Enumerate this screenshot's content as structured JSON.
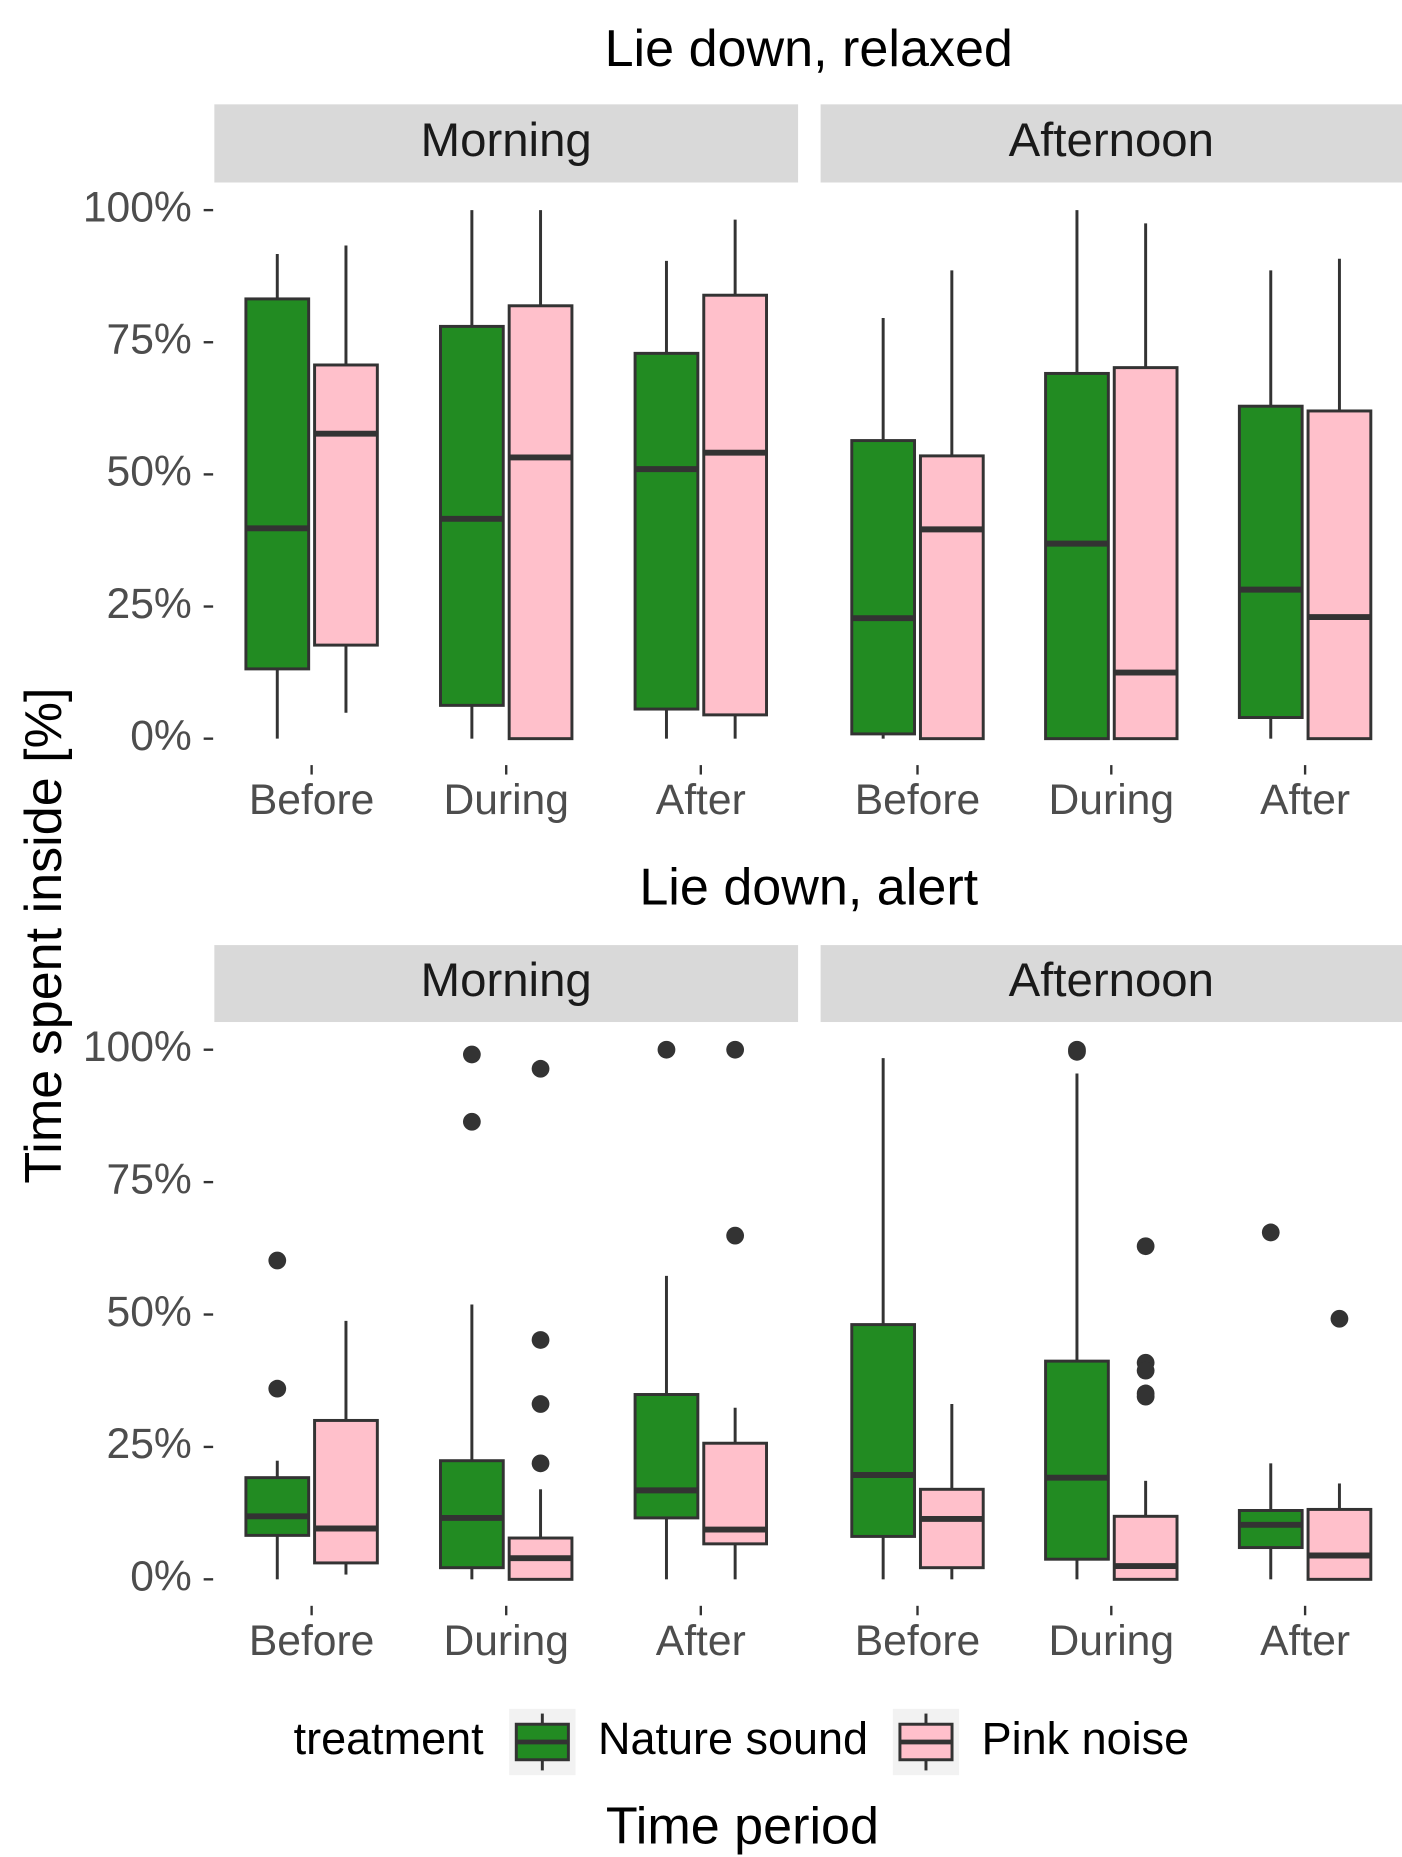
{
  "y_label": "Time spent inside [%]",
  "x_label": "Time period",
  "legend_title": "treatment",
  "chart_data": [
    {
      "type": "box",
      "title": "Lie down, relaxed",
      "facets": [
        "Morning",
        "Afternoon"
      ],
      "categories": [
        "Before",
        "During",
        "After"
      ],
      "ylim": [
        -5,
        105
      ],
      "yticks": [
        {
          "value": 0,
          "label": "0%"
        },
        {
          "value": 25,
          "label": "25%"
        },
        {
          "value": 50,
          "label": "50%"
        },
        {
          "value": 75,
          "label": "75%"
        },
        {
          "value": 100,
          "label": "100%"
        }
      ],
      "series": [
        {
          "name": "Nature sound",
          "color": "#228b22",
          "facets": [
            [
              {
                "min": 0,
                "q1": 13.2,
                "median": 39.8,
                "q3": 83.2,
                "max": 91.7,
                "outliers": []
              },
              {
                "min": 0,
                "q1": 6.3,
                "median": 41.6,
                "q3": 78,
                "max": 100,
                "outliers": []
              },
              {
                "min": 0,
                "q1": 5.6,
                "median": 51,
                "q3": 72.9,
                "max": 90.4,
                "outliers": []
              }
            ],
            [
              {
                "min": 0,
                "q1": 0.9,
                "median": 22.8,
                "q3": 56.4,
                "max": 79.6,
                "outliers": []
              },
              {
                "min": 0,
                "q1": 0,
                "median": 36.9,
                "q3": 69.1,
                "max": 100,
                "outliers": []
              },
              {
                "min": 0,
                "q1": 4,
                "median": 28.2,
                "q3": 62.9,
                "max": 88.6,
                "outliers": []
              }
            ]
          ]
        },
        {
          "name": "Pink noise",
          "color": "#ffc0cb",
          "facets": [
            [
              {
                "min": 4.9,
                "q1": 17.7,
                "median": 57.7,
                "q3": 70.7,
                "max": 93.3,
                "outliers": []
              },
              {
                "min": 0,
                "q1": 0,
                "median": 53.2,
                "q3": 81.9,
                "max": 100,
                "outliers": []
              },
              {
                "min": 0,
                "q1": 4.5,
                "median": 54.1,
                "q3": 83.9,
                "max": 98.2,
                "outliers": []
              }
            ],
            [
              {
                "min": 0,
                "q1": 0,
                "median": 39.6,
                "q3": 53.5,
                "max": 88.6,
                "outliers": []
              },
              {
                "min": 0,
                "q1": 0,
                "median": 12.5,
                "q3": 70.2,
                "max": 97.5,
                "outliers": []
              },
              {
                "min": 0,
                "q1": 0,
                "median": 23,
                "q3": 62,
                "max": 90.8,
                "outliers": []
              }
            ]
          ]
        }
      ]
    },
    {
      "type": "box",
      "title": "Lie down, alert",
      "facets": [
        "Morning",
        "Afternoon"
      ],
      "categories": [
        "Before",
        "During",
        "After"
      ],
      "ylim": [
        -5,
        105
      ],
      "yticks": [
        {
          "value": 0,
          "label": "0%"
        },
        {
          "value": 25,
          "label": "25%"
        },
        {
          "value": 50,
          "label": "50%"
        },
        {
          "value": 75,
          "label": "75%"
        },
        {
          "value": 100,
          "label": "100%"
        }
      ],
      "series": [
        {
          "name": "Nature sound",
          "color": "#228b22",
          "facets": [
            [
              {
                "min": 0,
                "q1": 8.3,
                "median": 11.9,
                "q3": 19.2,
                "max": 22.4,
                "outliers": [
                  60.2,
                  36
                ]
              },
              {
                "min": 0,
                "q1": 2.2,
                "median": 11.6,
                "q3": 22.4,
                "max": 51.9,
                "outliers": [
                  99.1,
                  86.4
                ]
              },
              {
                "min": 0,
                "q1": 11.6,
                "median": 16.8,
                "q3": 34.9,
                "max": 57.3,
                "outliers": [
                  100
                ]
              }
            ],
            [
              {
                "min": 0,
                "q1": 8.1,
                "median": 19.7,
                "q3": 48.1,
                "max": 98.4,
                "outliers": []
              },
              {
                "min": 0,
                "q1": 3.8,
                "median": 19.2,
                "q3": 41.2,
                "max": 95.5,
                "outliers": [
                  100,
                  99.6
                ]
              },
              {
                "min": 0,
                "q1": 6,
                "median": 10.3,
                "q3": 13,
                "max": 21.9,
                "outliers": [
                  65.5
                ]
              }
            ]
          ]
        },
        {
          "name": "Pink noise",
          "color": "#ffc0cb",
          "facets": [
            [
              {
                "min": 0.9,
                "q1": 3.1,
                "median": 9.6,
                "q3": 30,
                "max": 48.8,
                "outliers": []
              },
              {
                "min": 0,
                "q1": 0,
                "median": 4,
                "q3": 7.8,
                "max": 17,
                "outliers": [
                  96.4,
                  45.2,
                  33.1,
                  21.9
                ]
              },
              {
                "min": 0,
                "q1": 6.7,
                "median": 9.4,
                "q3": 25.7,
                "max": 32.4,
                "outliers": [
                  100,
                  64.9
                ]
              }
            ],
            [
              {
                "min": 0,
                "q1": 2.2,
                "median": 11.4,
                "q3": 17,
                "max": 33.1,
                "outliers": []
              },
              {
                "min": 0,
                "q1": 0,
                "median": 2.5,
                "q3": 11.9,
                "max": 18.6,
                "outliers": [
                  62.9,
                  40.9,
                  39.4,
                  35.1,
                  34.5
                ]
              },
              {
                "min": 0,
                "q1": 0,
                "median": 4.5,
                "q3": 13.2,
                "max": 18.1,
                "outliers": [
                  49.2
                ]
              }
            ]
          ]
        }
      ]
    }
  ]
}
